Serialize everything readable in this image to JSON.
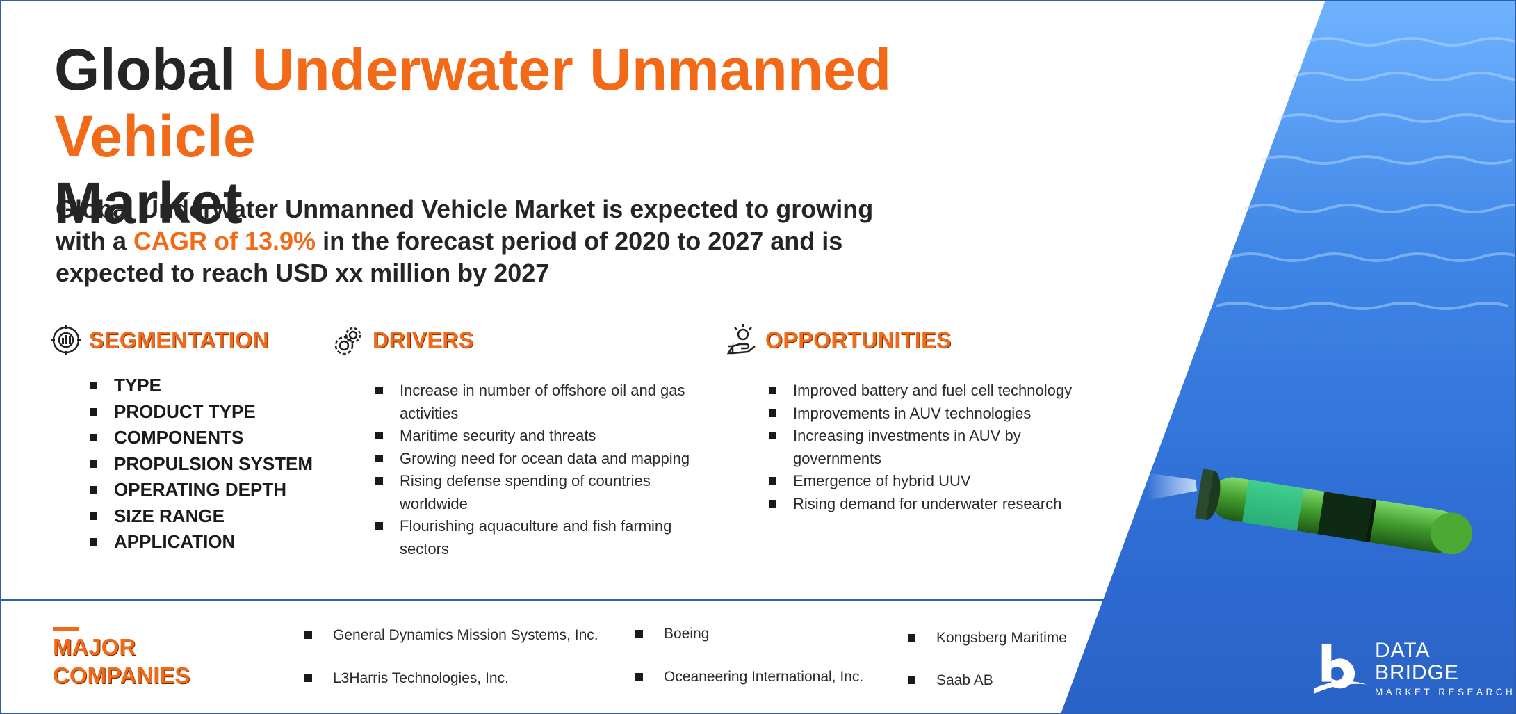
{
  "title": {
    "prefix": "Global",
    "highlight": "Underwater Unmanned Vehicle",
    "suffix": "Market"
  },
  "subtitle": {
    "before": "Global Underwater Unmanned Vehicle Market is expected to growing with a ",
    "highlight": "CAGR of 13.9%",
    "after": " in the forecast period of 2020 to 2027 and is expected to reach USD xx million by 2027"
  },
  "segmentation": {
    "heading": "SEGMENTATION",
    "icon": "target-chart-icon",
    "items": [
      "TYPE",
      "PRODUCT TYPE",
      "COMPONENTS",
      "PROPULSION SYSTEM",
      "OPERATING DEPTH",
      "SIZE RANGE",
      "APPLICATION"
    ]
  },
  "drivers": {
    "heading": "DRIVERS",
    "icon": "gears-icon",
    "items": [
      "Increase in number of offshore oil and gas activities",
      "Maritime security and threats",
      "Growing need for ocean data and mapping",
      "Rising defense spending of countries worldwide",
      "Flourishing aquaculture and fish farming sectors"
    ]
  },
  "opportunities": {
    "heading": "OPPORTUNITIES",
    "icon": "hand-lightbulb-icon",
    "items": [
      "Improved battery and fuel cell technology",
      "Improvements in AUV technologies",
      "Increasing investments in AUV by governments",
      "Emergence of hybrid UUV",
      "Rising demand for underwater research"
    ]
  },
  "major_companies": {
    "heading_line1": "MAJOR",
    "heading_line2": "COMPANIES",
    "items": [
      "General Dynamics Mission Systems, Inc.",
      "L3Harris Technologies, Inc.",
      "Boeing",
      "Oceaneering International, Inc.",
      "Kongsberg Maritime",
      "Saab AB"
    ]
  },
  "logo": {
    "name": "DATA BRIDGE",
    "tagline": "MARKET RESEARCH"
  },
  "colors": {
    "accent": "#f26a17",
    "text": "#252525",
    "border": "#2d5fa8",
    "ocean": "#2f6fd6"
  }
}
